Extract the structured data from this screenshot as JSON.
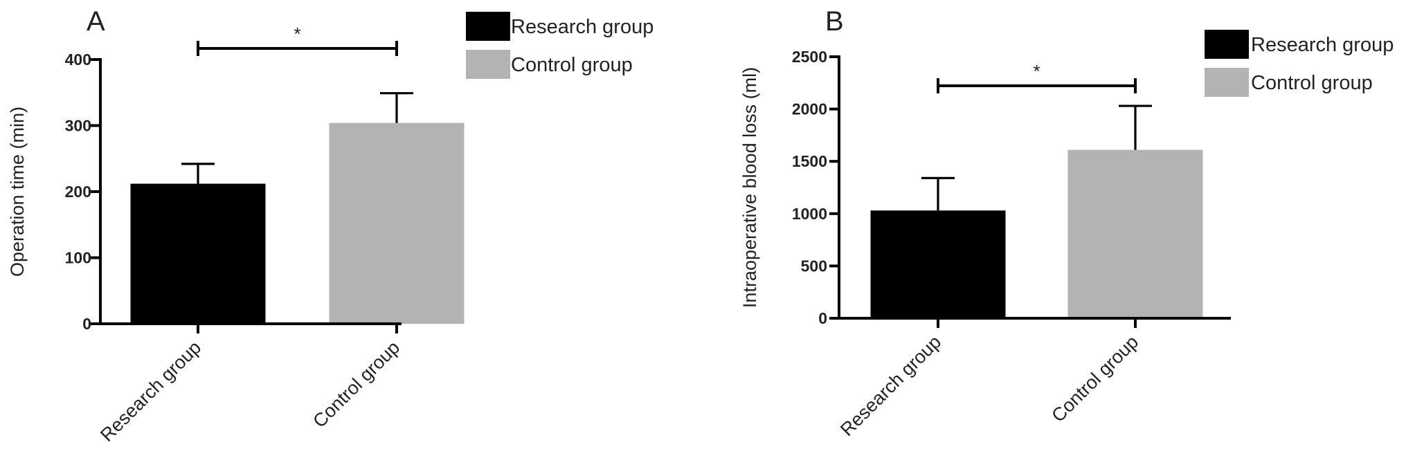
{
  "chart_data": [
    {
      "panel_label": "A",
      "type": "bar",
      "categories": [
        "Research group",
        "Control group"
      ],
      "values": [
        212,
        304
      ],
      "errors": [
        30,
        45
      ],
      "colors": [
        "#000000",
        "#b3b3b3"
      ],
      "xlabel": "",
      "ylabel": "Operation time (min)",
      "ylim": [
        0,
        400
      ],
      "yticks": [
        "0",
        "100",
        "200",
        "300",
        "400"
      ],
      "significance": {
        "between": [
          0,
          1
        ],
        "label": "*"
      },
      "legend": {
        "position": "top-right",
        "entries": [
          "Research group",
          "Control group"
        ]
      },
      "grid": false
    },
    {
      "panel_label": "B",
      "type": "bar",
      "categories": [
        "Research group",
        "Control group"
      ],
      "values": [
        1030,
        1610
      ],
      "errors": [
        310,
        420
      ],
      "colors": [
        "#000000",
        "#b3b3b3"
      ],
      "xlabel": "",
      "ylabel": "Intraoperative blood loss (ml)",
      "ylim": [
        0,
        2500
      ],
      "yticks": [
        "0",
        "500",
        "1000",
        "1500",
        "2000",
        "2500"
      ],
      "significance": {
        "between": [
          0,
          1
        ],
        "label": "*"
      },
      "legend": {
        "position": "top-right",
        "entries": [
          "Research group",
          "Control group"
        ]
      },
      "grid": false
    }
  ]
}
